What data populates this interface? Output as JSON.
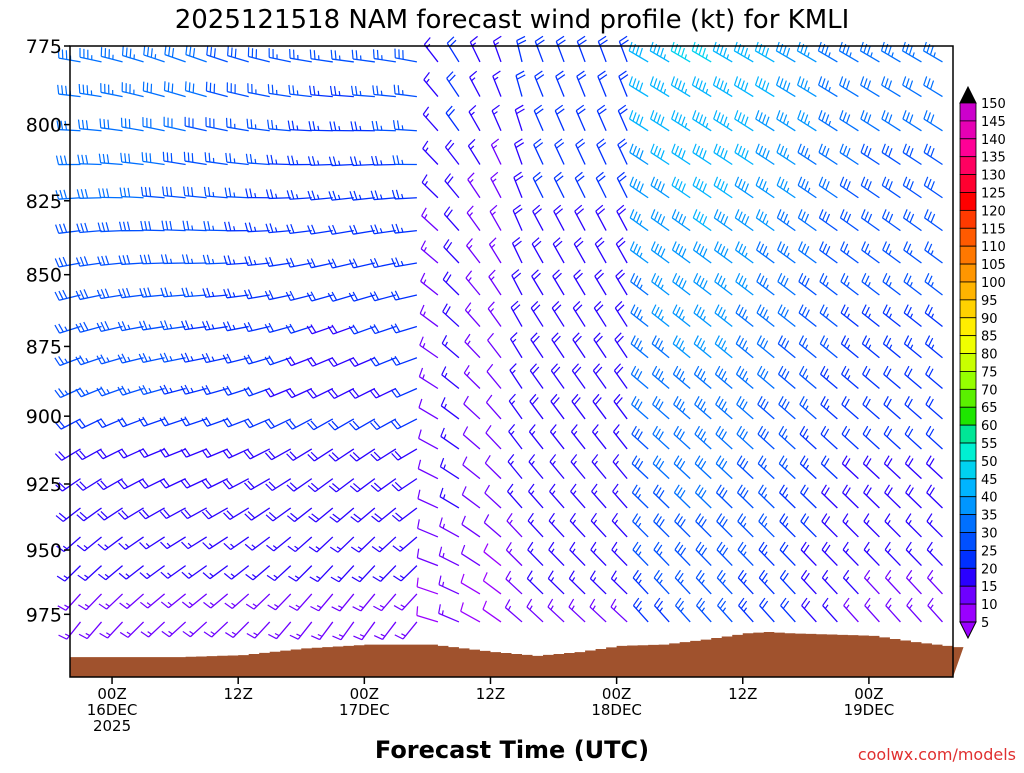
{
  "chart_data": {
    "type": "wind-barb-profile",
    "title": "2025121518 NAM forecast wind profile (kt) for KMLI",
    "xlabel": "Forecast Time (UTC)",
    "units": "kt",
    "credit": "coolwx.com/models",
    "y_axis": {
      "quantity": "pressure (hPa)",
      "range": [
        1000,
        775
      ],
      "ticks": [
        "775",
        "800",
        "825",
        "850",
        "875",
        "900",
        "925",
        "950",
        "975"
      ]
    },
    "x_axis": {
      "range_hours": [
        -4,
        80
      ],
      "ticks": [
        {
          "hour": 0,
          "lines": [
            "00Z",
            "16DEC",
            "2025"
          ]
        },
        {
          "hour": 12,
          "lines": [
            "12Z"
          ]
        },
        {
          "hour": 24,
          "lines": [
            "00Z",
            "17DEC"
          ]
        },
        {
          "hour": 36,
          "lines": [
            "12Z"
          ]
        },
        {
          "hour": 48,
          "lines": [
            "00Z",
            "18DEC"
          ]
        },
        {
          "hour": 60,
          "lines": [
            "12Z"
          ]
        },
        {
          "hour": 72,
          "lines": [
            "00Z",
            "19DEC"
          ]
        }
      ]
    },
    "colorbar": {
      "levels": [
        150,
        145,
        140,
        135,
        130,
        125,
        120,
        115,
        110,
        105,
        100,
        95,
        90,
        85,
        80,
        75,
        70,
        65,
        60,
        55,
        50,
        45,
        40,
        35,
        30,
        25,
        20,
        15,
        10,
        5
      ],
      "colors": [
        "#000000",
        "#cc00cc",
        "#e600b4",
        "#ff0096",
        "#ff0060",
        "#ff0030",
        "#ff0000",
        "#ff3a00",
        "#ff5a00",
        "#ff7800",
        "#ff9600",
        "#ffb400",
        "#ffd200",
        "#ffee00",
        "#f0ff00",
        "#c8ff00",
        "#96ff00",
        "#5af000",
        "#1ee600",
        "#00e696",
        "#00f0d2",
        "#00d2f0",
        "#00b4ff",
        "#0096ff",
        "#0070ff",
        "#0050ff",
        "#0030ff",
        "#2a00ff",
        "#6e00ff",
        "#9a00ff"
      ]
    },
    "terrain": {
      "color": "#a0522d",
      "surface_pressure_hpa": [
        {
          "hour": -4,
          "p": 992
        },
        {
          "hour": 6,
          "p": 992
        },
        {
          "hour": 12,
          "p": 991.2
        },
        {
          "hour": 18,
          "p": 988.5
        },
        {
          "hour": 24,
          "p": 987
        },
        {
          "hour": 30,
          "p": 987
        },
        {
          "hour": 36,
          "p": 990
        },
        {
          "hour": 40,
          "p": 991.5
        },
        {
          "hour": 44,
          "p": 990
        },
        {
          "hour": 48,
          "p": 987.5
        },
        {
          "hour": 52,
          "p": 987
        },
        {
          "hour": 56,
          "p": 985
        },
        {
          "hour": 60,
          "p": 982.5
        },
        {
          "hour": 62,
          "p": 982
        },
        {
          "hour": 64,
          "p": 982.5
        },
        {
          "hour": 68,
          "p": 983
        },
        {
          "hour": 72,
          "p": 983.5
        },
        {
          "hour": 76,
          "p": 986
        },
        {
          "hour": 80,
          "p": 988
        }
      ]
    },
    "wind_speed_kt_ranges": {
      "note": "barbs every 1 h, every ~10 hPa; direction mostly from the west-northwest aloft and from the south-southwest near the surface early, veering to northwest later",
      "min": 5,
      "max": 50
    }
  }
}
